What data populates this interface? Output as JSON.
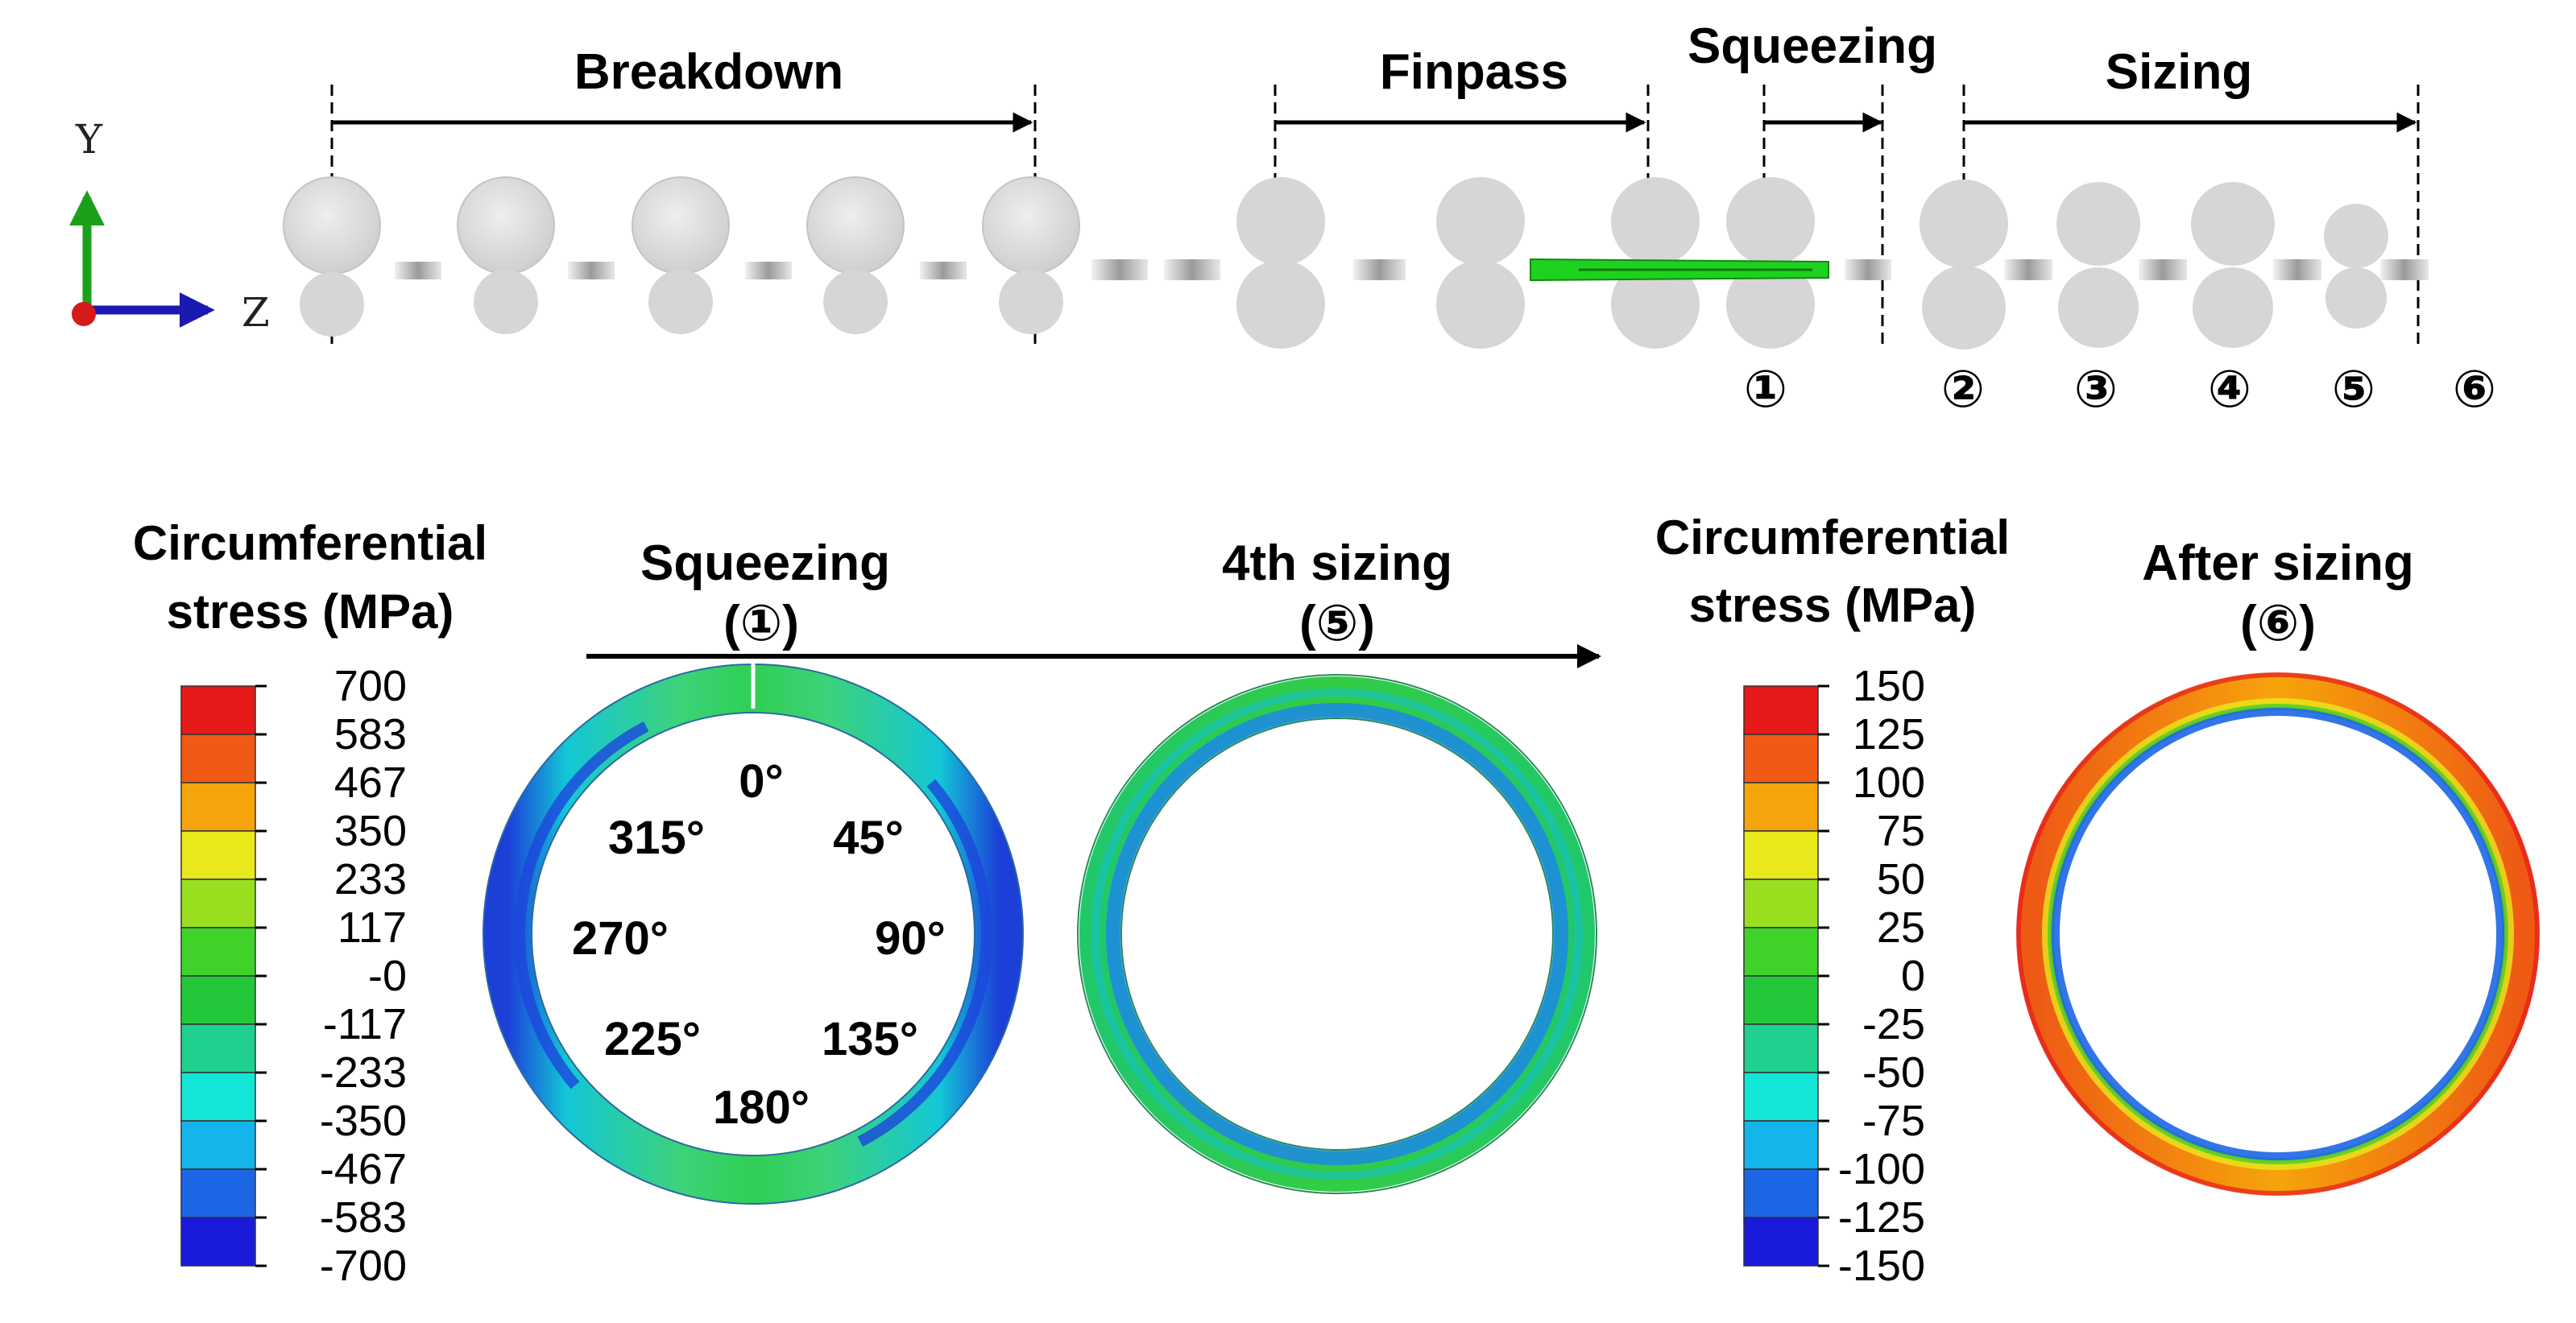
{
  "process": {
    "stages": [
      {
        "key": "breakdown",
        "label": "Breakdown"
      },
      {
        "key": "finpass",
        "label": "Finpass"
      },
      {
        "key": "squeezing",
        "label": "Squeezing"
      },
      {
        "key": "sizing",
        "label": "Sizing"
      }
    ],
    "axes": {
      "y": "Y",
      "z": "Z"
    },
    "positions": [
      "①",
      "②",
      "③",
      "④",
      "⑤",
      "⑥"
    ]
  },
  "legend_left": {
    "title_line1": "Circumferential",
    "title_line2": "stress (MPa)",
    "values": [
      "700",
      "583",
      "467",
      "350",
      "233",
      "117",
      "-0",
      "-117",
      "-233",
      "-350",
      "-467",
      "-583",
      "-700"
    ]
  },
  "legend_right": {
    "title_line1": "Circumferential",
    "title_line2": "stress (MPa)",
    "values": [
      "150",
      "125",
      "100",
      "75",
      "50",
      "25",
      "0",
      "-25",
      "-50",
      "-75",
      "-100",
      "-125",
      "-150"
    ]
  },
  "legend_colors": [
    "#e61919",
    "#f05a14",
    "#f6a40c",
    "#e9e91b",
    "#99df1f",
    "#3fd32a",
    "#22c83a",
    "#20d08e",
    "#13e6d6",
    "#14b5ea",
    "#1c66e6",
    "#1a1adb"
  ],
  "sections": {
    "squeezing": {
      "title": "Squeezing",
      "sub": "(①)"
    },
    "fourth_sizing": {
      "title": "4th sizing",
      "sub": "(⑤)"
    },
    "after_sizing": {
      "title": "After sizing",
      "sub": "(⑥)"
    }
  },
  "angles": [
    "0°",
    "45°",
    "90°",
    "135°",
    "180°",
    "225°",
    "270°",
    "315°"
  ],
  "colors": {
    "roll": "#d6d6d6",
    "strip": "#1bd11b",
    "text": "#000000"
  }
}
